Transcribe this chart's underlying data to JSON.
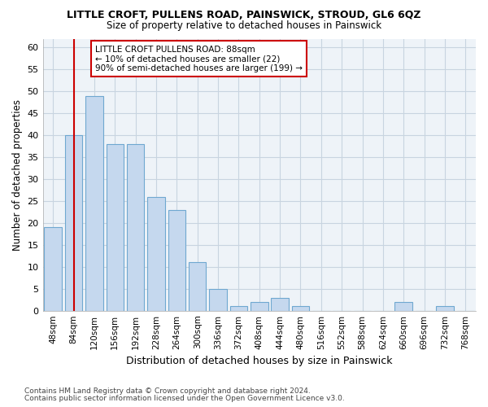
{
  "title": "LITTLE CROFT, PULLENS ROAD, PAINSWICK, STROUD, GL6 6QZ",
  "subtitle": "Size of property relative to detached houses in Painswick",
  "xlabel": "Distribution of detached houses by size in Painswick",
  "ylabel": "Number of detached properties",
  "categories": [
    "48sqm",
    "84sqm",
    "120sqm",
    "156sqm",
    "192sqm",
    "228sqm",
    "264sqm",
    "300sqm",
    "336sqm",
    "372sqm",
    "408sqm",
    "444sqm",
    "480sqm",
    "516sqm",
    "552sqm",
    "588sqm",
    "624sqm",
    "660sqm",
    "696sqm",
    "732sqm",
    "768sqm"
  ],
  "bar_values": [
    19,
    40,
    49,
    38,
    38,
    26,
    23,
    11,
    5,
    1,
    2,
    3,
    1,
    0,
    0,
    0,
    0,
    2,
    0,
    1,
    0
  ],
  "bar_color": "#c5d8ee",
  "bar_edge_color": "#6fa8d0",
  "ylim": [
    0,
    62
  ],
  "yticks": [
    0,
    5,
    10,
    15,
    20,
    25,
    30,
    35,
    40,
    45,
    50,
    55,
    60
  ],
  "vline_x": 1.5,
  "annotation_title": "LITTLE CROFT PULLENS ROAD: 88sqm",
  "annotation_line1": "← 10% of detached houses are smaller (22)",
  "annotation_line2": "90% of semi-detached houses are larger (199) →",
  "vline_color": "#cc0000",
  "annotation_box_color": "#ffffff",
  "annotation_box_edgecolor": "#cc0000",
  "footer1": "Contains HM Land Registry data © Crown copyright and database right 2024.",
  "footer2": "Contains public sector information licensed under the Open Government Licence v3.0.",
  "bg_color": "#eef3f8",
  "grid_color": "#c8d4e0"
}
